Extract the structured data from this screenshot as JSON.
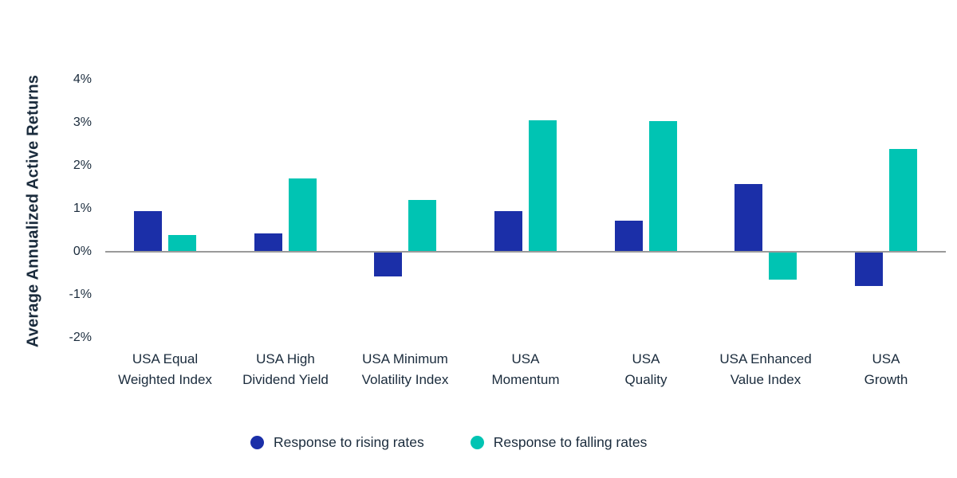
{
  "chart_data": {
    "type": "bar",
    "title": "",
    "ylabel": "Average Annualized Active Returns",
    "xlabel": "",
    "grid": false,
    "legend_position": "bottom",
    "y_axis": {
      "ticks": [
        4,
        3,
        2,
        1,
        0,
        -1,
        -2
      ],
      "suffix": "%",
      "ylim": [
        -2,
        4
      ]
    },
    "categories": [
      [
        "USA Equal",
        "Weighted Index"
      ],
      [
        "USA High",
        "Dividend Yield"
      ],
      [
        "USA Minimum",
        "Volatility Index"
      ],
      [
        "USA",
        "Momentum"
      ],
      [
        "USA",
        "Quality"
      ],
      [
        "USA Enhanced",
        "Value Index"
      ],
      [
        "USA",
        "Growth"
      ]
    ],
    "series": [
      {
        "name": "Response to rising rates",
        "color": "#1b2fa8",
        "values": [
          0.95,
          0.42,
          -0.58,
          0.94,
          0.72,
          1.57,
          -0.8
        ]
      },
      {
        "name": "Response to falling rates",
        "color": "#00c4b3",
        "values": [
          0.39,
          1.7,
          1.2,
          3.05,
          3.03,
          -0.65,
          2.38
        ]
      }
    ]
  },
  "colors": {
    "axis_line": "#9a9a9a",
    "text": "#1a2b3c"
  }
}
